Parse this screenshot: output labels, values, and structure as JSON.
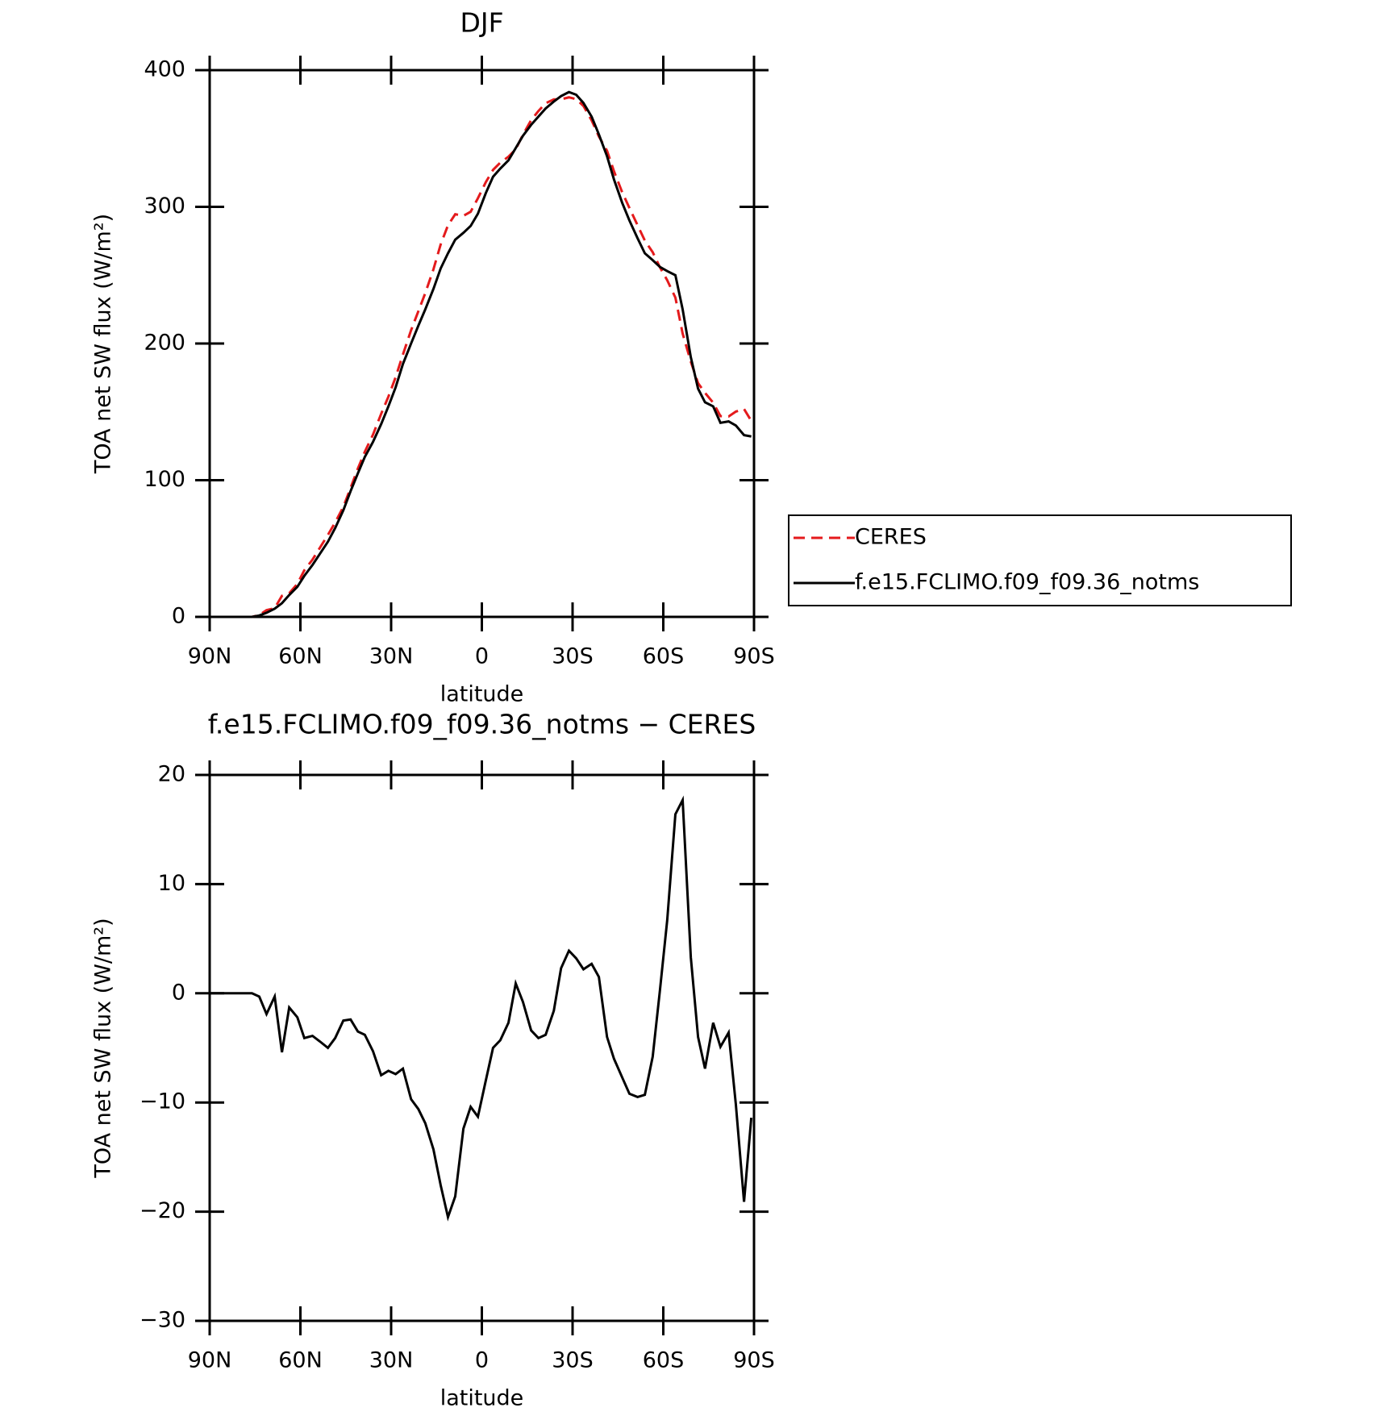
{
  "chart_data": [
    {
      "type": "line",
      "title": "DJF",
      "ylabel": "TOA net SW flux (W/m²)",
      "xlabel": "latitude",
      "x": [
        90,
        76,
        73.6,
        71.2,
        68.5,
        66.1,
        63.7,
        61,
        58.7,
        56,
        53.6,
        50.9,
        48.5,
        45.8,
        43.4,
        41,
        38.7,
        36,
        33.3,
        30.9,
        28.5,
        26.1,
        23.4,
        21,
        18.7,
        16,
        13.6,
        11.2,
        8.8,
        6.1,
        3.7,
        1.3,
        -1.3,
        -3.7,
        -6.1,
        -8.8,
        -11.2,
        -13.6,
        -16.3,
        -18.7,
        -21.1,
        -23.8,
        -26.2,
        -28.8,
        -31.2,
        -33.6,
        -36.3,
        -38.7,
        -41.4,
        -43.7,
        -46.4,
        -48.8,
        -51.5,
        -53.9,
        -56.5,
        -58.9,
        -61.3,
        -64,
        -66.4,
        -69.1,
        -71.5,
        -73.8,
        -76.5,
        -78.9,
        -81.6,
        -84,
        -86.7,
        -89.1
      ],
      "series": [
        {
          "name": "CERES",
          "color": "#e41a1c",
          "dashed": true,
          "values": [
            0,
            0,
            1.3,
            4.9,
            6.3,
            15.4,
            17.3,
            24.2,
            34.1,
            41.9,
            50.4,
            60,
            69.1,
            80.5,
            94.4,
            108.5,
            120.8,
            133.3,
            148.5,
            161.1,
            175.4,
            191.9,
            209.7,
            223.6,
            236.9,
            254.3,
            272.6,
            286.5,
            294.6,
            293.4,
            296.4,
            306.3,
            318,
            327,
            332.3,
            336.7,
            342.1,
            352.8,
            363.4,
            370.1,
            375.8,
            378.6,
            378.7,
            380.1,
            378.8,
            373.8,
            363.3,
            351.5,
            341,
            326,
            310.7,
            299.2,
            286.5,
            275.3,
            266.8,
            255.7,
            246.3,
            233.6,
            207.3,
            186.7,
            171,
            163.9,
            156.7,
            146.9,
            146.6,
            150.2,
            152.1,
            143.4
          ]
        },
        {
          "name": "f.e15.FCLIMO.f09_f09.36_notms",
          "color": "#000000",
          "dashed": false,
          "values": [
            0,
            0,
            1,
            3,
            6,
            10,
            16,
            22,
            30,
            38,
            46,
            55,
            65,
            78,
            92,
            105,
            117,
            128,
            141,
            154,
            168,
            185,
            200,
            213,
            225,
            240,
            255,
            266,
            276,
            281,
            286,
            295,
            310,
            322,
            328,
            334,
            343,
            352,
            360,
            366,
            372,
            377,
            381,
            384,
            382,
            376,
            366,
            353,
            337,
            320,
            303,
            290,
            277,
            266,
            261,
            256,
            253,
            250,
            225,
            190,
            167,
            157,
            154,
            142,
            143,
            140,
            133,
            132
          ]
        }
      ],
      "xlim": [
        90,
        -90
      ],
      "xticks": [
        {
          "value": 90,
          "label": "90N"
        },
        {
          "value": 60,
          "label": "60N"
        },
        {
          "value": 30,
          "label": "30N"
        },
        0,
        {
          "value": -30,
          "label": "30S"
        },
        {
          "value": -60,
          "label": "60S"
        },
        {
          "value": -90,
          "label": "90S"
        }
      ],
      "ylim": [
        0,
        400
      ],
      "yticks": [
        0,
        100,
        200,
        300,
        400
      ],
      "legend": "right"
    },
    {
      "type": "line",
      "title": "f.e15.FCLIMO.f09_f09.36_notms − CERES",
      "ylabel": "TOA net SW flux (W/m²)",
      "xlabel": "latitude",
      "x": [
        90,
        76,
        73.6,
        71.2,
        68.5,
        66.1,
        63.7,
        61,
        58.7,
        56,
        53.6,
        50.9,
        48.5,
        45.8,
        43.4,
        41,
        38.7,
        36,
        33.3,
        30.9,
        28.5,
        26.1,
        23.4,
        21,
        18.7,
        16,
        13.6,
        11.2,
        8.8,
        6.1,
        3.7,
        1.3,
        -1.3,
        -3.7,
        -6.1,
        -8.8,
        -11.2,
        -13.6,
        -16.3,
        -18.7,
        -21.1,
        -23.8,
        -26.2,
        -28.8,
        -31.2,
        -33.6,
        -36.3,
        -38.7,
        -41.4,
        -43.7,
        -46.4,
        -48.8,
        -51.5,
        -53.9,
        -56.5,
        -58.9,
        -61.3,
        -64,
        -66.4,
        -69.1,
        -71.5,
        -73.8,
        -76.5,
        -78.9,
        -81.6,
        -84,
        -86.7,
        -89.1
      ],
      "color": "#000000",
      "values": [
        0,
        0,
        -0.3,
        -1.9,
        -0.3,
        -5.4,
        -1.3,
        -2.2,
        -4.1,
        -3.9,
        -4.4,
        -5.0,
        -4.1,
        -2.5,
        -2.4,
        -3.5,
        -3.8,
        -5.3,
        -7.5,
        -7.1,
        -7.4,
        -6.9,
        -9.7,
        -10.6,
        -11.9,
        -14.3,
        -17.6,
        -20.5,
        -18.6,
        -12.4,
        -10.4,
        -11.3,
        -8.0,
        -5.0,
        -4.3,
        -2.7,
        0.9,
        -0.8,
        -3.4,
        -4.1,
        -3.8,
        -1.6,
        2.3,
        3.9,
        3.2,
        2.2,
        2.7,
        1.5,
        -4.0,
        -6.0,
        -7.7,
        -9.2,
        -9.5,
        -9.3,
        -5.8,
        0.3,
        6.7,
        16.4,
        17.7,
        3.3,
        -4.0,
        -6.9,
        -2.7,
        -4.9,
        -3.6,
        -10.2,
        -19.1,
        -11.4
      ],
      "xlim": [
        90,
        -90
      ],
      "xticks": [
        {
          "value": 90,
          "label": "90N"
        },
        {
          "value": 60,
          "label": "60N"
        },
        {
          "value": 30,
          "label": "30N"
        },
        0,
        {
          "value": -30,
          "label": "30S"
        },
        {
          "value": -60,
          "label": "60S"
        },
        {
          "value": -90,
          "label": "90S"
        }
      ],
      "ylim": [
        -30,
        20
      ],
      "yticks": [
        {
          "value": -30,
          "label": "−30"
        },
        {
          "value": -20,
          "label": "−20"
        },
        {
          "value": -10,
          "label": "−10"
        },
        0,
        10,
        20
      ]
    }
  ]
}
